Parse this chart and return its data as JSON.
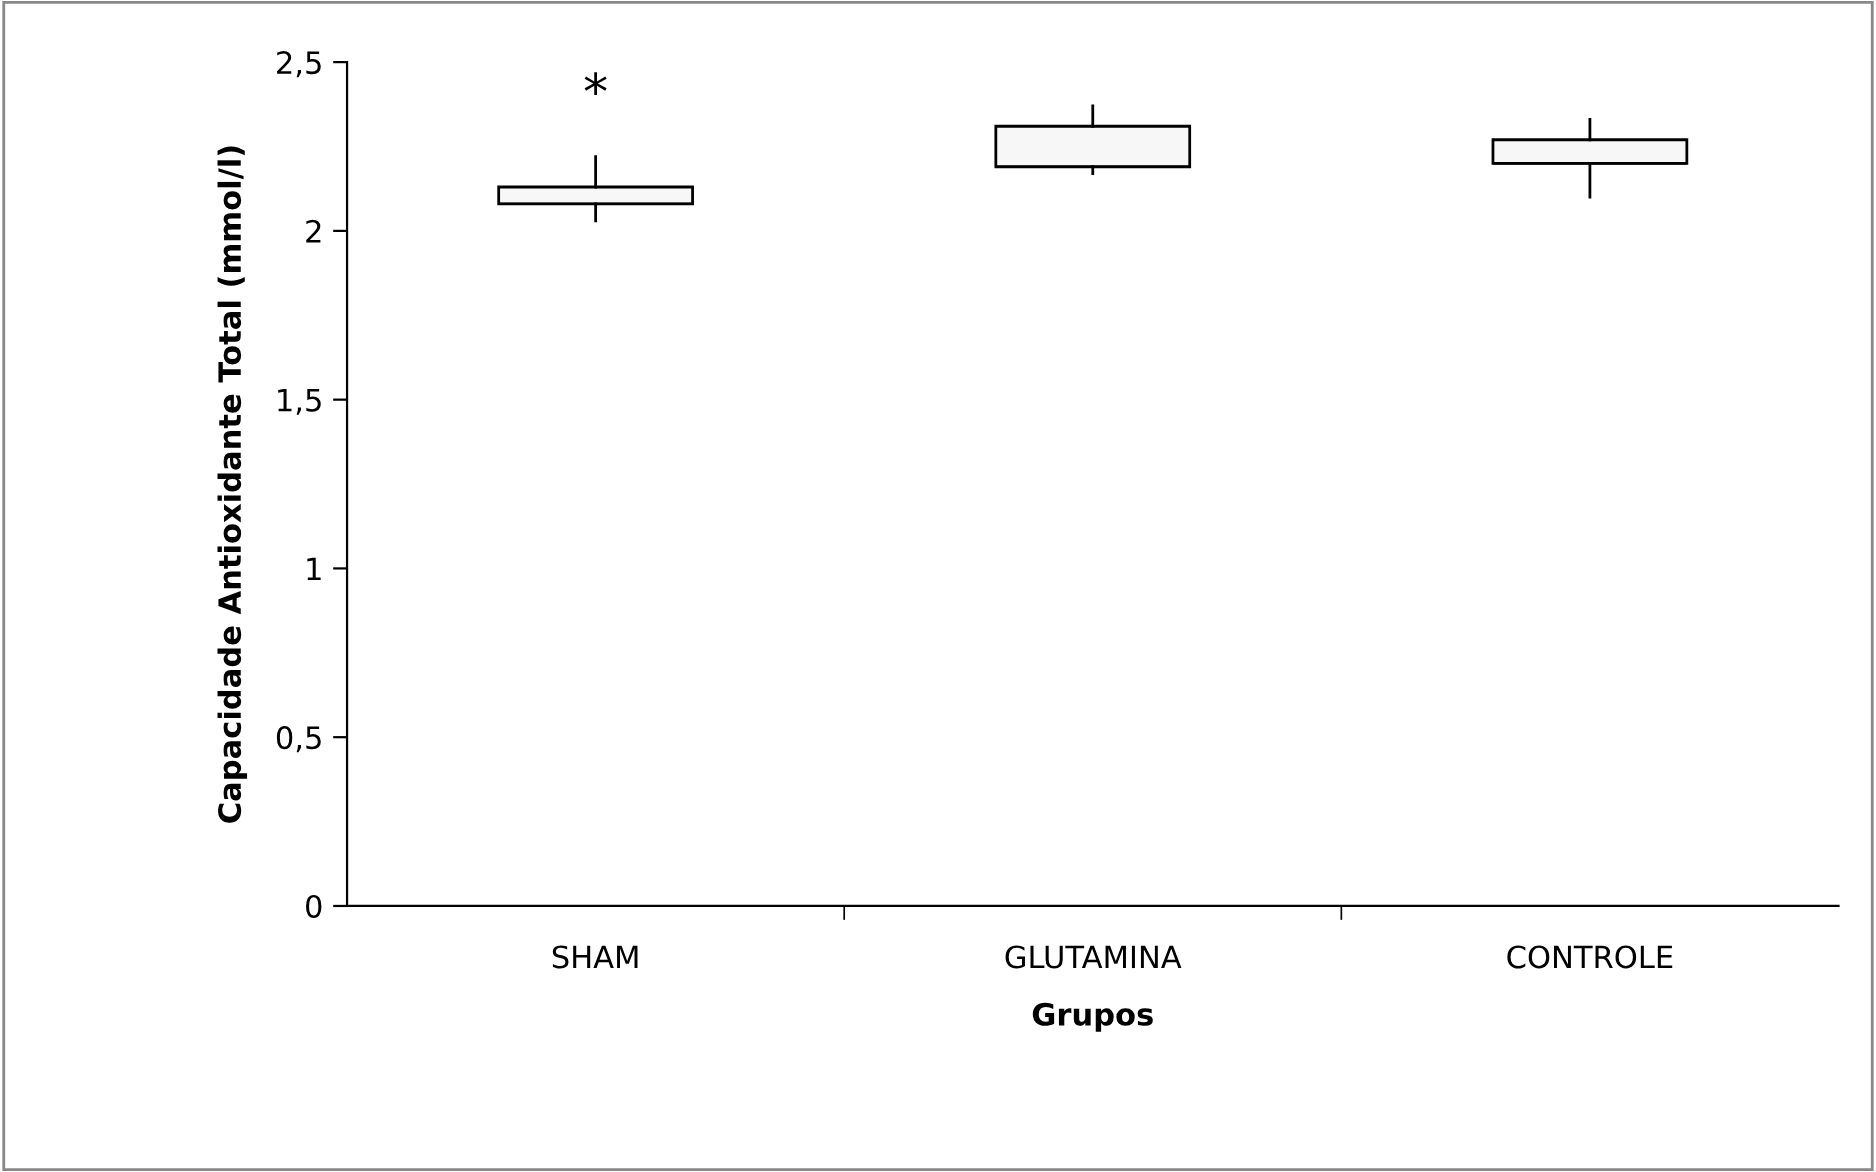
{
  "chart_data": {
    "type": "box",
    "xlabel": "Grupos",
    "ylabel": "Capacidade Antioxidante Total (mmol/l)",
    "categories": [
      "SHAM",
      "GLUTAMINA",
      "CONTROLE"
    ],
    "boxes": [
      {
        "low": 2.03,
        "q1": 2.08,
        "median": 2.08,
        "q3": 2.13,
        "high": 2.22
      },
      {
        "low": 2.17,
        "q1": 2.19,
        "median": 2.19,
        "q3": 2.31,
        "high": 2.37
      },
      {
        "low": 2.1,
        "q1": 2.2,
        "median": 2.2,
        "q3": 2.27,
        "high": 2.33
      }
    ],
    "color": "#f7f7f7",
    "ylim": [
      0,
      2.5
    ],
    "yticks": [
      {
        "value": 0,
        "label": "0"
      },
      {
        "value": 0.5,
        "label": "0,5"
      },
      {
        "value": 1,
        "label": "1"
      },
      {
        "value": 1.5,
        "label": "1,5"
      },
      {
        "value": 2,
        "label": "2"
      },
      {
        "value": 2.5,
        "label": "2,5"
      }
    ],
    "annotations": [
      "*"
    ],
    "grid": false,
    "legend": false
  }
}
